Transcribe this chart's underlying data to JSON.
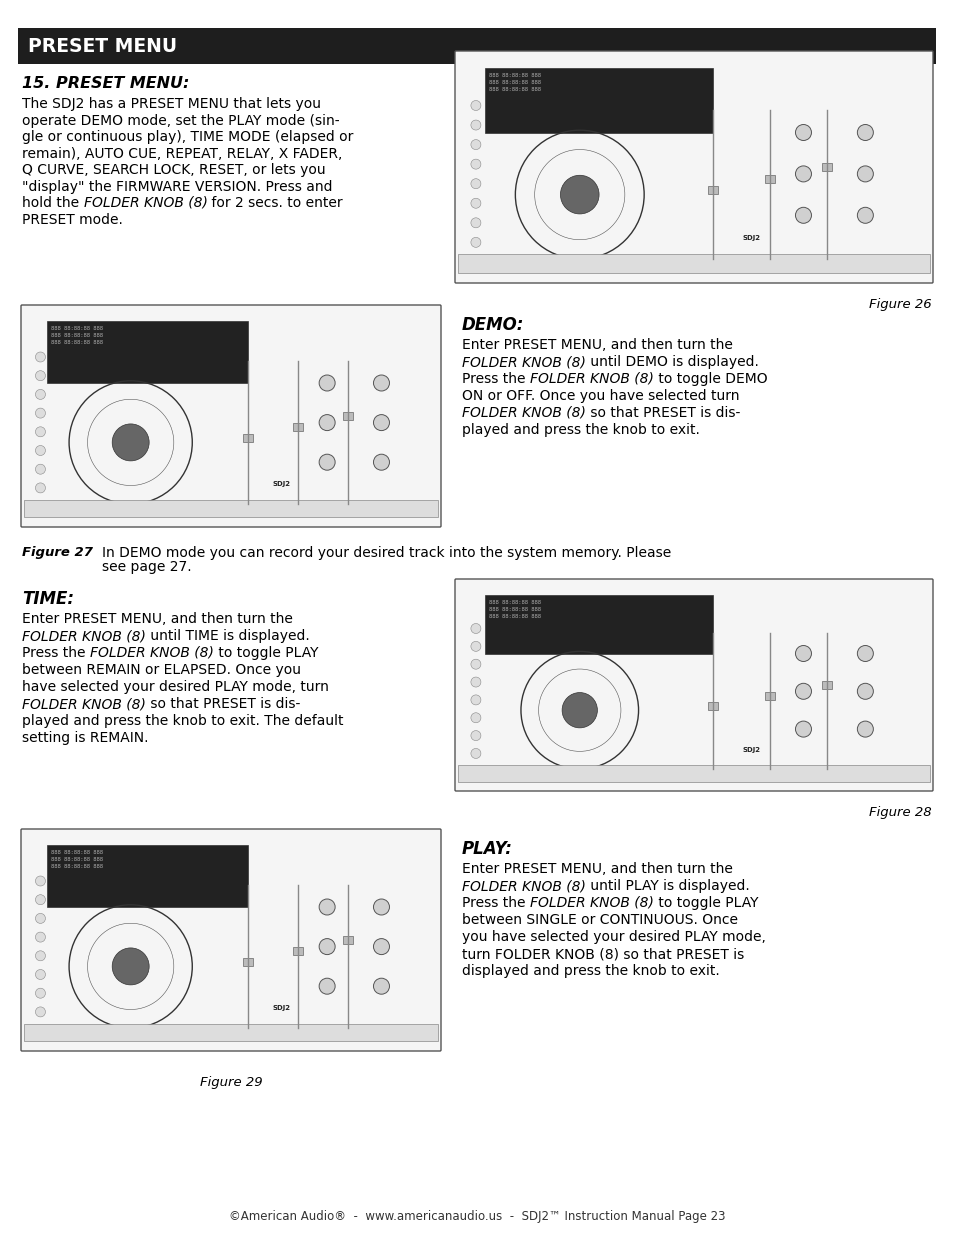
{
  "page_bg": "#ffffff",
  "header_bg": "#1e1e1e",
  "header_text": "PRESET MENU",
  "header_text_color": "#ffffff",
  "footer_text": "©American Audio®  -  www.americanaudio.us  -  SDJ2™ Instruction Manual Page 23",
  "section_title": "15. PRESET MENU:",
  "fig26_caption": "Figure 26",
  "fig27_label": "Figure 27",
  "fig27_caption_text": "In DEMO mode you can record your desired track into the system memory. Please\nsee page 27.",
  "demo_title": "DEMO:",
  "demo_lines": [
    [
      [
        "Enter PRESET MENU, and then turn the",
        false,
        false
      ]
    ],
    [
      [
        "FOLDER KNOB (8)",
        false,
        true
      ],
      [
        " until DEMO is displayed.",
        false,
        false
      ]
    ],
    [
      [
        "Press the ",
        false,
        false
      ],
      [
        "FOLDER KNOB (8)",
        false,
        true
      ],
      [
        " to toggle DEMO",
        false,
        false
      ]
    ],
    [
      [
        "ON or OFF. Once you have selected turn",
        false,
        false
      ]
    ],
    [
      [
        "FOLDER KNOB (8)",
        false,
        true
      ],
      [
        " so that PRESET is dis-",
        false,
        false
      ]
    ],
    [
      [
        "played and press the knob to exit.",
        false,
        false
      ]
    ]
  ],
  "time_title": "TIME:",
  "time_lines": [
    [
      [
        "Enter PRESET MENU, and then turn the",
        false,
        false
      ]
    ],
    [
      [
        "FOLDER KNOB (8)",
        false,
        true
      ],
      [
        " until TIME is displayed.",
        false,
        false
      ]
    ],
    [
      [
        "Press the ",
        false,
        false
      ],
      [
        "FOLDER KNOB (8)",
        false,
        true
      ],
      [
        " to toggle PLAY",
        false,
        false
      ]
    ],
    [
      [
        "between REMAIN or ELAPSED. Once you",
        false,
        false
      ]
    ],
    [
      [
        "have selected your desired PLAY mode, turn",
        false,
        false
      ]
    ],
    [
      [
        "FOLDER KNOB (8)",
        false,
        true
      ],
      [
        " so that PRESET is dis-",
        false,
        false
      ]
    ],
    [
      [
        "played and press the knob to exit. The default",
        false,
        false
      ]
    ],
    [
      [
        "setting is REMAIN.",
        false,
        false
      ]
    ]
  ],
  "fig28_caption": "Figure 28",
  "play_title": "PLAY:",
  "play_lines": [
    [
      [
        "Enter PRESET MENU, and then turn the",
        false,
        false
      ]
    ],
    [
      [
        "FOLDER KNOB (8)",
        false,
        true
      ],
      [
        " until PLAY is displayed.",
        false,
        false
      ]
    ],
    [
      [
        "Press the ",
        false,
        false
      ],
      [
        "FOLDER KNOB (8)",
        false,
        true
      ],
      [
        " to toggle PLAY",
        false,
        false
      ]
    ],
    [
      [
        "between SINGLE or CONTINUOUS. Once",
        false,
        false
      ]
    ],
    [
      [
        "you have selected your desired PLAY mode,",
        false,
        false
      ]
    ],
    [
      [
        "turn FOLDER KNOB (8) so that PRESET is",
        false,
        false
      ]
    ],
    [
      [
        "displayed and press the knob to exit.",
        false,
        false
      ]
    ]
  ],
  "fig29_caption": "Figure 29",
  "intro_lines": [
    [
      [
        "The SDJ2 has a PRESET MENU that lets you",
        false,
        false
      ]
    ],
    [
      [
        "operate DEMO mode, set the PLAY mode (sin-",
        false,
        false
      ]
    ],
    [
      [
        "gle or continuous play), TIME MODE (elapsed or",
        false,
        false
      ]
    ],
    [
      [
        "remain), AUTO CUE, REPEAT, RELAY, X FADER,",
        false,
        false
      ]
    ],
    [
      [
        "Q CURVE, SEARCH LOCK, RESET, or lets you",
        false,
        false
      ]
    ],
    [
      [
        "\"display\" the FIRMWARE VERSION. Press and",
        false,
        false
      ]
    ],
    [
      [
        "hold the ",
        false,
        false
      ],
      [
        "FOLDER KNOB (8)",
        false,
        true
      ],
      [
        " for 2 secs. to enter",
        false,
        false
      ]
    ],
    [
      [
        "PRESET mode.",
        false,
        false
      ]
    ]
  ],
  "body_fontsize": 10.0,
  "header_fontsize": 13.5,
  "title_fontsize": 11.5,
  "caption_fontsize": 9.5,
  "footer_fontsize": 8.5
}
